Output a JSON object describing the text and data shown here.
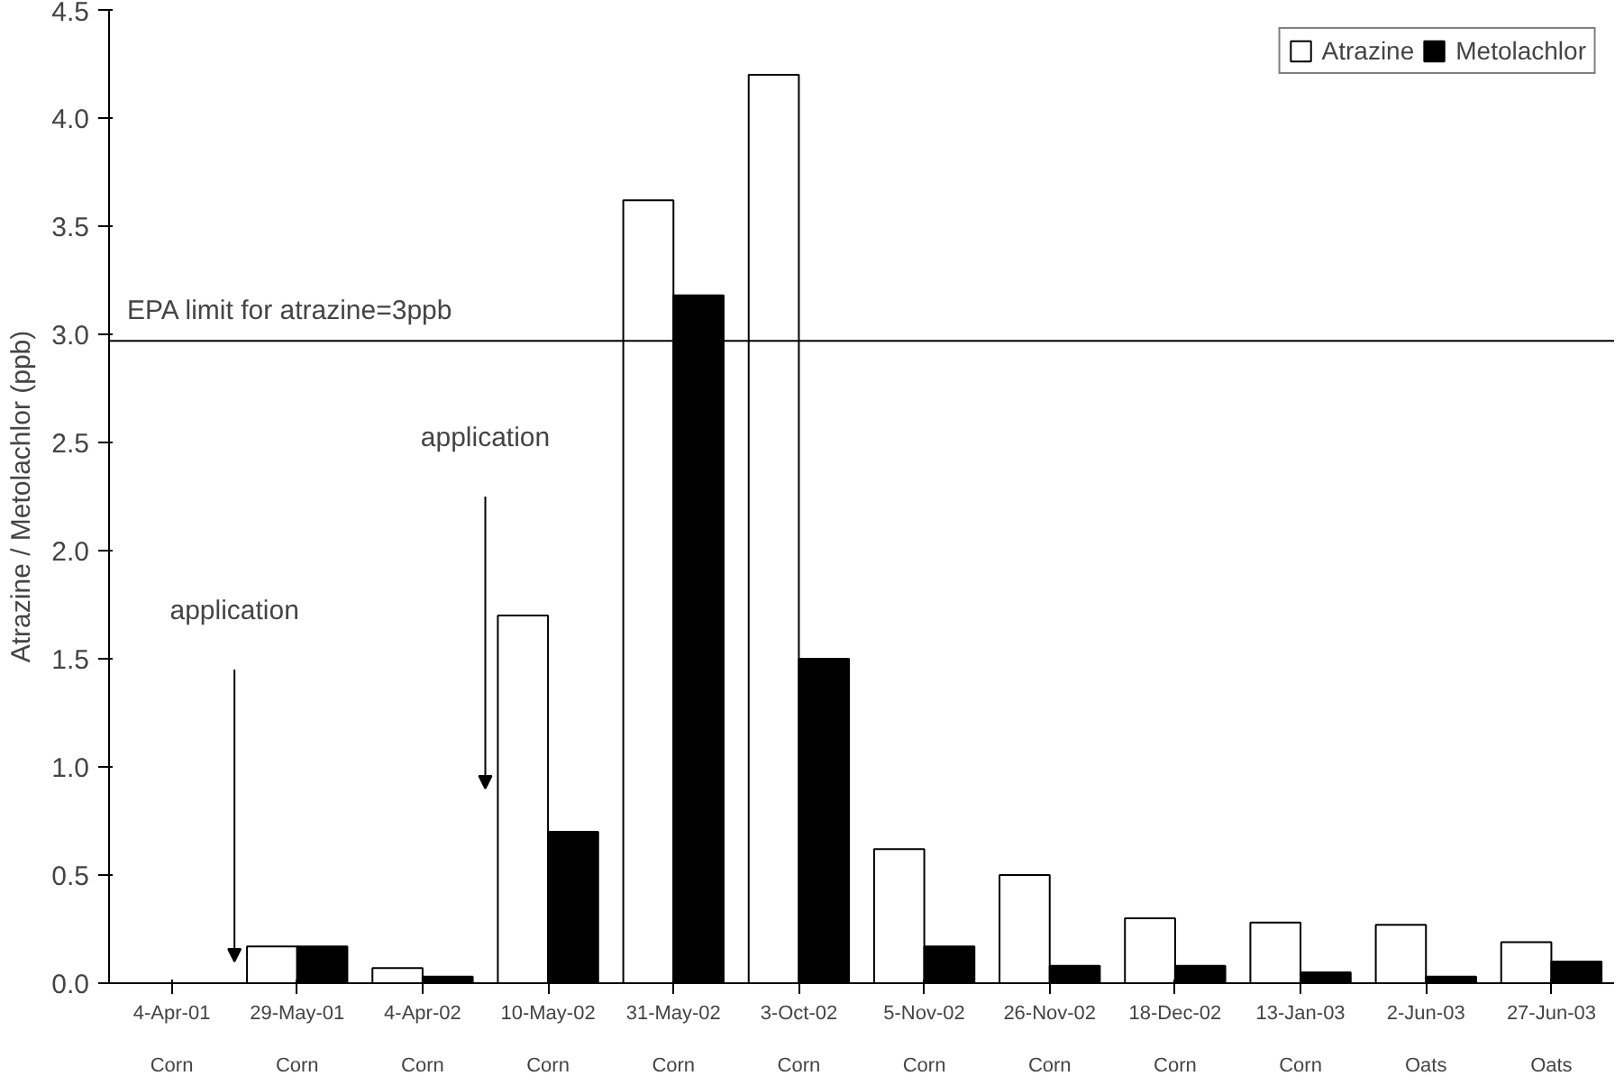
{
  "chart_data": {
    "type": "bar",
    "ylabel": "Atrazine / Metolachlor (ppb)",
    "categories": [
      "4-Apr-01\n\nCorn",
      "29-May-01\n\nCorn",
      "4-Apr-02\n\nCorn",
      "10-May-02\n\nCorn",
      "31-May-02\n\nCorn",
      "3-Oct-02\n\nCorn",
      "5-Nov-02\n\nCorn",
      "26-Nov-02\n\nCorn",
      "18-Dec-02\n\nCorn",
      "13-Jan-03\n\nCorn",
      "2-Jun-03\n\nOats",
      "27-Jun-03\n\nOats"
    ],
    "series": [
      {
        "name": "Atrazine",
        "color": "#ffffff",
        "values": [
          null,
          0.17,
          0.07,
          1.7,
          3.62,
          4.2,
          0.62,
          0.5,
          0.3,
          0.28,
          0.27,
          0.19
        ]
      },
      {
        "name": "Metolachlor",
        "color": "#000000",
        "values": [
          null,
          0.17,
          0.03,
          0.7,
          3.18,
          1.5,
          0.17,
          0.08,
          0.08,
          0.05,
          0.03,
          0.1
        ]
      }
    ],
    "ylim": [
      0,
      4.5
    ],
    "yticks": [
      {
        "value": 0,
        "label": "0.0"
      },
      {
        "value": 0.5,
        "label": "0.5"
      },
      {
        "value": 1,
        "label": "1.0"
      },
      {
        "value": 1.5,
        "label": "1.5"
      },
      {
        "value": 2,
        "label": "2.0"
      },
      {
        "value": 2.5,
        "label": "2.5"
      },
      {
        "value": 3,
        "label": "3.0"
      },
      {
        "value": 3.5,
        "label": "3.5"
      },
      {
        "value": 4,
        "label": "4.0"
      },
      {
        "value": 4.5,
        "label": "4.5"
      }
    ],
    "ref_lines": [
      {
        "axis": "y",
        "value": 2.97,
        "label": "EPA limit for atrazine=3ppb",
        "color": "#000000"
      }
    ],
    "annotations": [
      "application",
      "application"
    ],
    "legend": "top right",
    "grid": false
  }
}
